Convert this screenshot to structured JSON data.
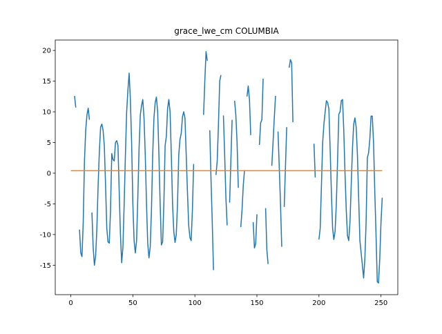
{
  "chart_data": {
    "type": "line",
    "title": "grace_lwe_cm COLUMBIA",
    "xlim": [
      -12.55,
      263.55
    ],
    "xticks": [
      0,
      50,
      100,
      150,
      200,
      250
    ],
    "ylim": [
      -19.8,
      21.7
    ],
    "yticks": [
      -15,
      -10,
      -5,
      0,
      5,
      10,
      15,
      20
    ],
    "series": [
      {
        "color": "#1f77b4",
        "x": [
          0,
          1,
          2,
          3,
          4,
          5,
          6,
          7,
          8,
          9,
          10,
          11,
          12,
          13,
          14,
          15,
          16,
          17,
          18,
          19,
          20,
          21,
          22,
          23,
          24,
          25,
          26,
          27,
          28,
          29,
          30,
          31,
          32,
          33,
          34,
          35,
          36,
          37,
          38,
          39,
          40,
          41,
          42,
          43,
          44,
          45,
          46,
          47,
          48,
          49,
          50,
          51,
          52,
          53,
          54,
          55,
          56,
          57,
          58,
          59,
          60,
          61,
          62,
          63,
          64,
          65,
          66,
          67,
          68,
          69,
          70,
          71,
          72,
          73,
          74,
          75,
          76,
          77,
          78,
          79,
          80,
          81,
          82,
          83,
          84,
          85,
          86,
          87,
          88,
          89,
          90,
          91,
          92,
          93,
          94,
          95,
          96,
          97,
          98,
          99,
          100,
          101,
          102,
          103,
          104,
          105,
          106,
          107,
          108,
          109,
          110,
          111,
          112,
          113,
          114,
          115,
          116,
          117,
          118,
          119,
          120,
          121,
          122,
          123,
          124,
          125,
          126,
          127,
          128,
          129,
          130,
          131,
          132,
          133,
          134,
          135,
          136,
          137,
          138,
          139,
          140,
          141,
          142,
          143,
          144,
          145,
          146,
          147,
          148,
          149,
          150,
          151,
          152,
          153,
          154,
          155,
          156,
          157,
          158,
          159,
          160,
          161,
          162,
          163,
          164,
          165,
          166,
          167,
          168,
          169,
          170,
          171,
          172,
          173,
          174,
          175,
          176,
          177,
          178,
          179,
          180,
          181,
          182,
          183,
          184,
          185,
          186,
          187,
          188,
          189,
          190,
          191,
          192,
          193,
          194,
          195,
          196,
          197,
          198,
          199,
          200,
          201,
          202,
          203,
          204,
          205,
          206,
          207,
          208,
          209,
          210,
          211,
          212,
          213,
          214,
          215,
          216,
          217,
          218,
          219,
          220,
          221,
          222,
          223,
          224,
          225,
          226,
          227,
          228,
          229,
          230,
          231,
          232,
          233,
          234,
          235,
          236,
          237,
          238,
          239,
          240,
          241,
          242,
          243,
          244,
          245,
          246,
          247,
          248,
          249,
          250,
          251
        ],
        "values": [
          null,
          null,
          null,
          12.6,
          10.7,
          null,
          null,
          -9.2,
          -13,
          -13.6,
          -8,
          2,
          7,
          9.5,
          10.6,
          8.7,
          null,
          -6.4,
          -12,
          -15,
          -13.5,
          -9,
          -2,
          3.5,
          7.5,
          8,
          7,
          4.5,
          -2,
          -9,
          -11.2,
          -11.4,
          -6,
          3.2,
          2.2,
          2,
          5,
          5.3,
          4.5,
          -3,
          -10,
          -14.6,
          -12,
          -5,
          3,
          10,
          13.5,
          16.3,
          12,
          5,
          -5,
          -11,
          -13,
          -11,
          -4,
          4,
          9.5,
          11,
          12,
          9,
          3,
          -5,
          -11.5,
          -13.8,
          -12,
          -6,
          3,
          9,
          11.5,
          12.4,
          10,
          3,
          -5,
          -11.7,
          -11.2,
          -5,
          4.5,
          6,
          10.5,
          12,
          10,
          3,
          -5,
          -9.5,
          -11.3,
          -10,
          -5,
          3,
          5.5,
          6.5,
          9.2,
          10,
          9,
          3,
          -3,
          -8.5,
          -10.5,
          -11,
          -6,
          1.5,
          null,
          null,
          null,
          null,
          null,
          1.5,
          null,
          9.5,
          15,
          19.8,
          18.3,
          null,
          7,
          -1,
          -8,
          -15.8,
          null,
          -0.3,
          2,
          8,
          15,
          16,
          null,
          9.4,
          3,
          -4,
          -8.5,
          null,
          -4.8,
          2,
          8.7,
          null,
          11.8,
          9.5,
          5,
          -2.4,
          null,
          -8.8,
          -6,
          -2,
          0.5,
          null,
          12.5,
          14.2,
          12,
          6.2,
          null,
          -8,
          -12.2,
          -11.5,
          -6.7,
          null,
          4.6,
          8.2,
          8.7,
          15.4,
          null,
          -5.7,
          -12.5,
          -14.8,
          null,
          null,
          1.2,
          5,
          9,
          12.6,
          null,
          6.8,
          1,
          -5,
          -12,
          null,
          -5.5,
          1,
          7.5,
          null,
          17.2,
          18.5,
          18,
          8.3,
          null,
          null,
          null,
          null,
          null,
          null,
          null,
          null,
          null,
          null,
          null,
          null,
          null,
          null,
          null,
          null,
          4.8,
          -0.7,
          null,
          null,
          -10.8,
          -9,
          -2,
          5,
          8,
          10,
          11.8,
          11.5,
          10.5,
          4,
          -3,
          -9,
          -10.8,
          -9.5,
          -5,
          2,
          9.6,
          10,
          11.8,
          12,
          7,
          0,
          -6,
          -10.2,
          -11,
          -8,
          -2,
          4,
          8,
          9,
          7.5,
          3,
          -4,
          -11,
          -13,
          -15,
          -17.1,
          -14,
          -8,
          2.5,
          3.3,
          5.5,
          9.3,
          9.3,
          5,
          -3,
          -10,
          -17.7,
          -17.9,
          -14,
          -8,
          -4
        ]
      },
      {
        "color": "#ff7f0e",
        "x": [
          0,
          251
        ],
        "values": [
          0.4,
          0.4
        ]
      }
    ]
  }
}
